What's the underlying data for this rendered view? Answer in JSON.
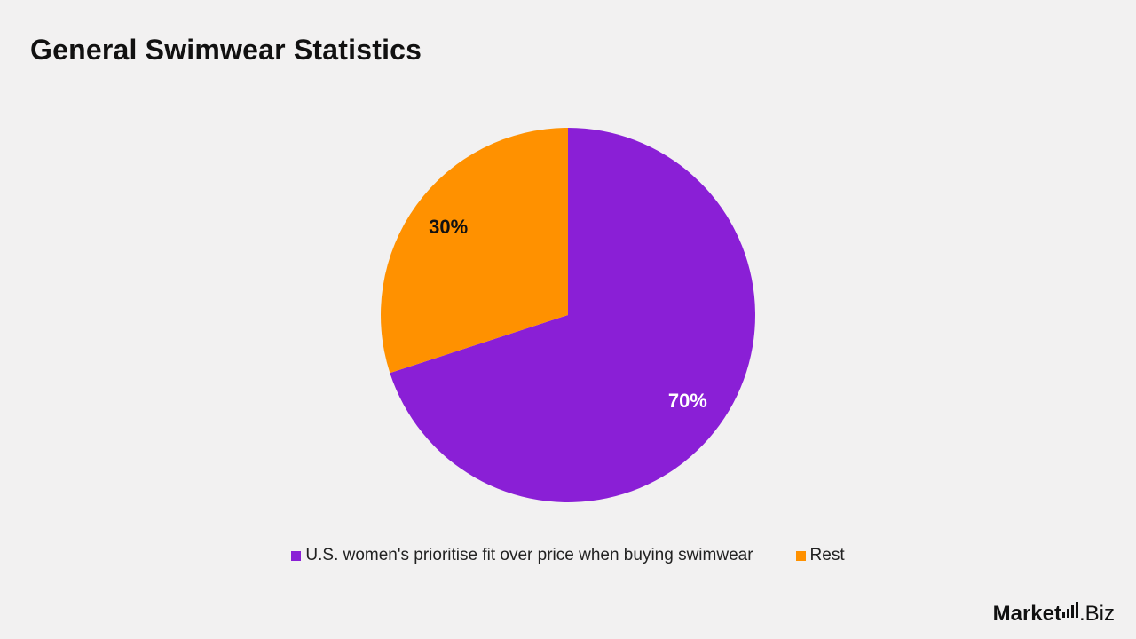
{
  "title": "General Swimwear Statistics",
  "chart_data": {
    "type": "pie",
    "title": "General Swimwear Statistics",
    "slices": [
      {
        "label": "U.S. women's prioritise fit over price when buying swimwear",
        "value": 70,
        "display": "70%",
        "color": "#8a1fd6",
        "label_color": "#ffffff"
      },
      {
        "label": "Rest",
        "value": 30,
        "display": "30%",
        "color": "#ff9100",
        "label_color": "#111111"
      }
    ],
    "legend_position": "bottom"
  },
  "logo": {
    "part1": "Market",
    "part2": ".Biz"
  }
}
